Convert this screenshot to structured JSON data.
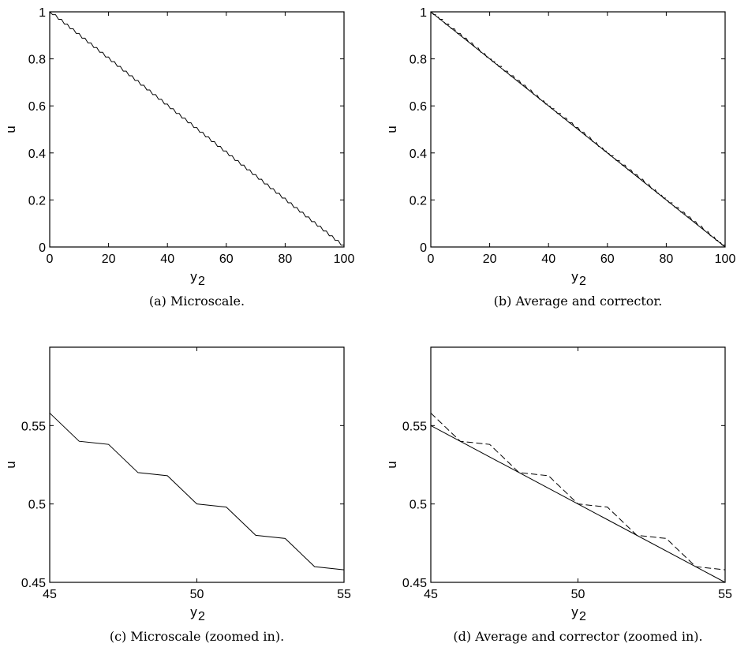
{
  "chart_data": [
    {
      "id": "a",
      "type": "line",
      "caption": "(a) Microscale.",
      "xlabel_main": "y",
      "xlabel_sub": "2",
      "ylabel": "u",
      "xlim": [
        0,
        100
      ],
      "ylim": [
        0,
        1
      ],
      "xticks": [
        0,
        20,
        40,
        60,
        80,
        100
      ],
      "xtick_labels": [
        "0",
        "20",
        "40",
        "60",
        "80",
        "100"
      ],
      "yticks": [
        0,
        0.2,
        0.4,
        0.6,
        0.8,
        1
      ],
      "ytick_labels": [
        "0",
        "0.2",
        "0.4",
        "0.6",
        "0.8",
        "1"
      ],
      "grid": false,
      "series": [
        {
          "style": "solid",
          "kind": "microscale",
          "x_start": 0,
          "x_end": 100,
          "slope": -0.01,
          "intercept": 1
        }
      ]
    },
    {
      "id": "b",
      "type": "line",
      "caption": "(b) Average and corrector.",
      "xlabel_main": "y",
      "xlabel_sub": "2",
      "ylabel": "u",
      "xlim": [
        0,
        100
      ],
      "ylim": [
        0,
        1
      ],
      "xticks": [
        0,
        20,
        40,
        60,
        80,
        100
      ],
      "xtick_labels": [
        "0",
        "20",
        "40",
        "60",
        "80",
        "100"
      ],
      "yticks": [
        0,
        0.2,
        0.4,
        0.6,
        0.8,
        1
      ],
      "ytick_labels": [
        "0",
        "0.2",
        "0.4",
        "0.6",
        "0.8",
        "1"
      ],
      "grid": false,
      "series": [
        {
          "style": "solid",
          "kind": "linear",
          "x": [
            0,
            100
          ],
          "y": [
            1,
            0
          ]
        },
        {
          "style": "dashed",
          "kind": "microscale",
          "x_start": 0,
          "x_end": 100,
          "slope": -0.01,
          "intercept": 1
        }
      ]
    },
    {
      "id": "c",
      "type": "line",
      "caption": "(c) Microscale (zoomed in).",
      "xlabel_main": "y",
      "xlabel_sub": "2",
      "ylabel": "u",
      "xlim": [
        45,
        55
      ],
      "ylim": [
        0.45,
        0.6
      ],
      "xticks": [
        45,
        50,
        55
      ],
      "xtick_labels": [
        "45",
        "50",
        "55"
      ],
      "yticks": [
        0.45,
        0.5,
        0.55
      ],
      "ytick_labels": [
        "0.45",
        "0.5",
        "0.55"
      ],
      "grid": false,
      "series": [
        {
          "style": "solid",
          "kind": "points",
          "x": [
            45,
            46,
            47,
            48,
            49,
            50,
            51,
            52,
            53,
            54,
            55
          ],
          "y": [
            0.558,
            0.54,
            0.538,
            0.52,
            0.518,
            0.5,
            0.498,
            0.48,
            0.478,
            0.46,
            0.458
          ]
        }
      ]
    },
    {
      "id": "d",
      "type": "line",
      "caption": "(d) Average and corrector (zoomed in).",
      "xlabel_main": "y",
      "xlabel_sub": "2",
      "ylabel": "u",
      "xlim": [
        45,
        55
      ],
      "ylim": [
        0.45,
        0.6
      ],
      "xticks": [
        45,
        50,
        55
      ],
      "xtick_labels": [
        "45",
        "50",
        "55"
      ],
      "yticks": [
        0.45,
        0.5,
        0.55
      ],
      "ytick_labels": [
        "0.45",
        "0.5",
        "0.55"
      ],
      "grid": false,
      "series": [
        {
          "style": "solid",
          "kind": "points",
          "x": [
            45,
            55
          ],
          "y": [
            0.55,
            0.45
          ]
        },
        {
          "style": "dashed",
          "kind": "points",
          "x": [
            45,
            46,
            47,
            48,
            49,
            50,
            51,
            52,
            53,
            54,
            55
          ],
          "y": [
            0.558,
            0.54,
            0.538,
            0.52,
            0.518,
            0.5,
            0.498,
            0.48,
            0.478,
            0.46,
            0.458
          ]
        }
      ]
    }
  ]
}
